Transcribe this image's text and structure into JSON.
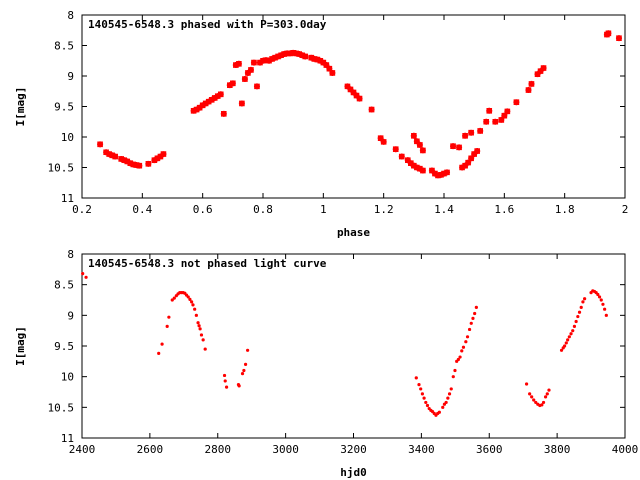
{
  "chart_data": [
    {
      "type": "scatter",
      "title": "140545-6548.3 phased with P=303.0day",
      "xlabel": "phase",
      "ylabel": "I[mag]",
      "xlim": [
        0.2,
        2.0
      ],
      "ylim": [
        8,
        11
      ],
      "y_inverted": true,
      "xticks": [
        "0.2",
        "0.4",
        "0.6",
        "0.8",
        "1",
        "1.2",
        "1.4",
        "1.6",
        "1.8",
        "2"
      ],
      "xtick_values": [
        0.2,
        0.4,
        0.6,
        0.8,
        1.0,
        1.2,
        1.4,
        1.6,
        1.8,
        2.0
      ],
      "yticks": [
        "8",
        "8.5",
        "9",
        "9.5",
        "10",
        "10.5",
        "11"
      ],
      "ytick_values": [
        8,
        8.5,
        9,
        9.5,
        10,
        10.5,
        11
      ],
      "grid": false,
      "marker_color": "#ff0000",
      "marker": "plus",
      "points": [
        [
          0.26,
          10.12
        ],
        [
          0.28,
          10.25
        ],
        [
          0.29,
          10.28
        ],
        [
          0.3,
          10.3
        ],
        [
          0.31,
          10.32
        ],
        [
          0.33,
          10.36
        ],
        [
          0.34,
          10.38
        ],
        [
          0.35,
          10.4
        ],
        [
          0.36,
          10.43
        ],
        [
          0.37,
          10.45
        ],
        [
          0.38,
          10.46
        ],
        [
          0.39,
          10.47
        ],
        [
          0.42,
          10.44
        ],
        [
          0.44,
          10.38
        ],
        [
          0.45,
          10.35
        ],
        [
          0.46,
          10.32
        ],
        [
          0.47,
          10.28
        ],
        [
          0.57,
          9.57
        ],
        [
          0.58,
          9.55
        ],
        [
          0.59,
          9.52
        ],
        [
          0.6,
          9.48
        ],
        [
          0.61,
          9.45
        ],
        [
          0.62,
          9.42
        ],
        [
          0.63,
          9.39
        ],
        [
          0.64,
          9.36
        ],
        [
          0.65,
          9.33
        ],
        [
          0.66,
          9.3
        ],
        [
          0.67,
          9.62
        ],
        [
          0.69,
          9.15
        ],
        [
          0.7,
          9.12
        ],
        [
          0.71,
          8.82
        ],
        [
          0.72,
          8.8
        ],
        [
          0.73,
          9.45
        ],
        [
          0.74,
          9.05
        ],
        [
          0.75,
          8.95
        ],
        [
          0.76,
          8.9
        ],
        [
          0.77,
          8.78
        ],
        [
          0.78,
          9.17
        ],
        [
          0.79,
          8.78
        ],
        [
          0.8,
          8.75
        ],
        [
          0.81,
          8.74
        ],
        [
          0.82,
          8.75
        ],
        [
          0.83,
          8.72
        ],
        [
          0.84,
          8.7
        ],
        [
          0.85,
          8.68
        ],
        [
          0.86,
          8.66
        ],
        [
          0.87,
          8.64
        ],
        [
          0.88,
          8.63
        ],
        [
          0.89,
          8.63
        ],
        [
          0.9,
          8.62
        ],
        [
          0.91,
          8.63
        ],
        [
          0.92,
          8.64
        ],
        [
          0.93,
          8.66
        ],
        [
          0.94,
          8.68
        ],
        [
          0.96,
          8.7
        ],
        [
          0.97,
          8.72
        ],
        [
          0.98,
          8.73
        ],
        [
          0.99,
          8.75
        ],
        [
          1.0,
          8.78
        ],
        [
          1.01,
          8.82
        ],
        [
          1.02,
          8.88
        ],
        [
          1.03,
          8.95
        ],
        [
          1.08,
          9.17
        ],
        [
          1.09,
          9.22
        ],
        [
          1.1,
          9.27
        ],
        [
          1.11,
          9.32
        ],
        [
          1.12,
          9.37
        ],
        [
          1.16,
          9.55
        ],
        [
          1.19,
          10.02
        ],
        [
          1.2,
          10.08
        ],
        [
          1.24,
          10.2
        ],
        [
          1.26,
          10.32
        ],
        [
          1.28,
          10.38
        ],
        [
          1.29,
          10.43
        ],
        [
          1.3,
          10.47
        ],
        [
          1.31,
          10.5
        ],
        [
          1.32,
          10.52
        ],
        [
          1.33,
          10.55
        ],
        [
          1.3,
          9.98
        ],
        [
          1.31,
          10.07
        ],
        [
          1.32,
          10.13
        ],
        [
          1.33,
          10.22
        ],
        [
          1.36,
          10.55
        ],
        [
          1.37,
          10.6
        ],
        [
          1.38,
          10.63
        ],
        [
          1.39,
          10.62
        ],
        [
          1.4,
          10.6
        ],
        [
          1.41,
          10.58
        ],
        [
          1.43,
          10.15
        ],
        [
          1.45,
          10.17
        ],
        [
          1.46,
          10.5
        ],
        [
          1.47,
          10.47
        ],
        [
          1.48,
          10.42
        ],
        [
          1.49,
          10.35
        ],
        [
          1.5,
          10.28
        ],
        [
          1.51,
          10.23
        ],
        [
          1.47,
          9.98
        ],
        [
          1.49,
          9.93
        ],
        [
          1.52,
          9.9
        ],
        [
          1.54,
          9.75
        ],
        [
          1.55,
          9.57
        ],
        [
          1.57,
          9.75
        ],
        [
          1.59,
          9.72
        ],
        [
          1.6,
          9.65
        ],
        [
          1.61,
          9.58
        ],
        [
          1.64,
          9.43
        ],
        [
          1.68,
          9.23
        ],
        [
          1.69,
          9.13
        ],
        [
          1.71,
          8.97
        ],
        [
          1.72,
          8.92
        ],
        [
          1.73,
          8.87
        ],
        [
          1.94,
          8.32
        ],
        [
          1.945,
          8.3
        ],
        [
          1.98,
          8.38
        ]
      ]
    },
    {
      "type": "scatter",
      "title": "140545-6548.3 not phased light curve",
      "xlabel": "hjd0",
      "ylabel": "I[mag]",
      "xlim": [
        2400,
        4000
      ],
      "ylim": [
        8,
        11
      ],
      "y_inverted": true,
      "xticks": [
        "2400",
        "2600",
        "2800",
        "3000",
        "3200",
        "3400",
        "3600",
        "3800",
        "4000"
      ],
      "xtick_values": [
        2400,
        2600,
        2800,
        3000,
        3200,
        3400,
        3600,
        3800,
        4000
      ],
      "yticks": [
        "8",
        "8.5",
        "9",
        "9.5",
        "10",
        "10.5",
        "11"
      ],
      "ytick_values": [
        8,
        8.5,
        9,
        9.5,
        10,
        10.5,
        11
      ],
      "grid": false,
      "marker_color": "#ff0000",
      "marker": "dot",
      "points": [
        [
          2402,
          8.32
        ],
        [
          2412,
          8.38
        ],
        [
          2626,
          9.62
        ],
        [
          2636,
          9.47
        ],
        [
          2651,
          9.18
        ],
        [
          2656,
          9.03
        ],
        [
          2666,
          8.75
        ],
        [
          2672,
          8.72
        ],
        [
          2678,
          8.68
        ],
        [
          2683,
          8.65
        ],
        [
          2688,
          8.63
        ],
        [
          2693,
          8.63
        ],
        [
          2698,
          8.63
        ],
        [
          2703,
          8.64
        ],
        [
          2708,
          8.67
        ],
        [
          2713,
          8.7
        ],
        [
          2718,
          8.74
        ],
        [
          2723,
          8.78
        ],
        [
          2727,
          8.83
        ],
        [
          2732,
          8.9
        ],
        [
          2737,
          9.0
        ],
        [
          2742,
          9.12
        ],
        [
          2745,
          9.17
        ],
        [
          2748,
          9.22
        ],
        [
          2752,
          9.32
        ],
        [
          2757,
          9.4
        ],
        [
          2763,
          9.55
        ],
        [
          2820,
          9.98
        ],
        [
          2822,
          10.07
        ],
        [
          2826,
          10.17
        ],
        [
          2861,
          10.13
        ],
        [
          2863,
          10.15
        ],
        [
          2873,
          9.95
        ],
        [
          2877,
          9.9
        ],
        [
          2882,
          9.8
        ],
        [
          2888,
          9.57
        ],
        [
          3385,
          10.02
        ],
        [
          3393,
          10.13
        ],
        [
          3398,
          10.2
        ],
        [
          3403,
          10.28
        ],
        [
          3408,
          10.35
        ],
        [
          3413,
          10.42
        ],
        [
          3418,
          10.47
        ],
        [
          3423,
          10.52
        ],
        [
          3428,
          10.55
        ],
        [
          3433,
          10.57
        ],
        [
          3438,
          10.6
        ],
        [
          3443,
          10.63
        ],
        [
          3448,
          10.6
        ],
        [
          3453,
          10.58
        ],
        [
          3463,
          10.5
        ],
        [
          3468,
          10.45
        ],
        [
          3473,
          10.42
        ],
        [
          3478,
          10.35
        ],
        [
          3483,
          10.28
        ],
        [
          3488,
          10.2
        ],
        [
          3494,
          10.0
        ],
        [
          3499,
          9.9
        ],
        [
          3504,
          9.75
        ],
        [
          3509,
          9.72
        ],
        [
          3514,
          9.68
        ],
        [
          3519,
          9.58
        ],
        [
          3524,
          9.52
        ],
        [
          3531,
          9.43
        ],
        [
          3536,
          9.35
        ],
        [
          3542,
          9.23
        ],
        [
          3547,
          9.13
        ],
        [
          3552,
          9.05
        ],
        [
          3557,
          8.97
        ],
        [
          3562,
          8.87
        ],
        [
          3710,
          10.12
        ],
        [
          3719,
          10.28
        ],
        [
          3725,
          10.33
        ],
        [
          3731,
          10.38
        ],
        [
          3737,
          10.42
        ],
        [
          3743,
          10.45
        ],
        [
          3749,
          10.47
        ],
        [
          3755,
          10.46
        ],
        [
          3760,
          10.42
        ],
        [
          3766,
          10.33
        ],
        [
          3771,
          10.28
        ],
        [
          3776,
          10.22
        ],
        [
          3813,
          9.57
        ],
        [
          3818,
          9.53
        ],
        [
          3822,
          9.5
        ],
        [
          3827,
          9.45
        ],
        [
          3831,
          9.4
        ],
        [
          3836,
          9.35
        ],
        [
          3841,
          9.3
        ],
        [
          3846,
          9.25
        ],
        [
          3851,
          9.18
        ],
        [
          3856,
          9.1
        ],
        [
          3861,
          9.02
        ],
        [
          3866,
          8.95
        ],
        [
          3871,
          8.87
        ],
        [
          3876,
          8.78
        ],
        [
          3881,
          8.73
        ],
        [
          3900,
          8.63
        ],
        [
          3905,
          8.6
        ],
        [
          3910,
          8.61
        ],
        [
          3915,
          8.63
        ],
        [
          3920,
          8.66
        ],
        [
          3925,
          8.7
        ],
        [
          3930,
          8.75
        ],
        [
          3935,
          8.82
        ],
        [
          3940,
          8.9
        ],
        [
          3945,
          9.0
        ]
      ]
    }
  ]
}
